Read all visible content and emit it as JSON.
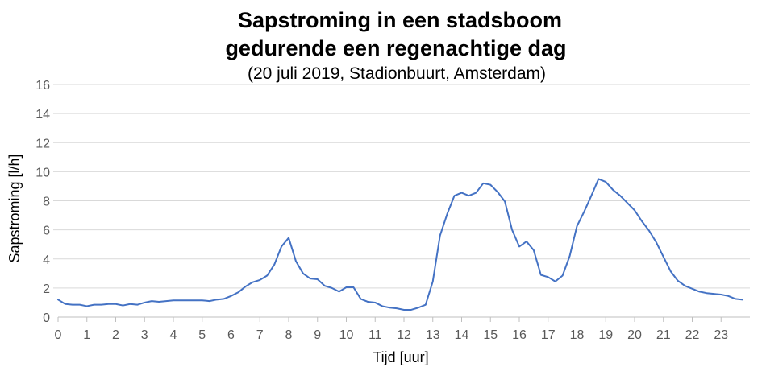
{
  "chart_data": {
    "type": "line",
    "title": [
      "Sapstroming in een stadsboom",
      "gedurende een regenachtige dag"
    ],
    "subtitle": "(20 juli 2019, Stadionbuurt, Amsterdam)",
    "xlabel": "Tijd [uur]",
    "ylabel": "Sapstroming [l/h]",
    "xlim": [
      0,
      24
    ],
    "ylim": [
      0,
      16
    ],
    "xticks": [
      0,
      1,
      2,
      3,
      4,
      5,
      6,
      7,
      8,
      9,
      10,
      11,
      12,
      13,
      14,
      15,
      16,
      17,
      18,
      19,
      20,
      21,
      22,
      23
    ],
    "yticks": [
      0,
      2,
      4,
      6,
      8,
      10,
      12,
      14,
      16
    ],
    "grid": "horizontal",
    "legend": "none",
    "colors": {
      "series": "#4472c4",
      "grid": "#d9d9d9",
      "axis": "#bfbfbf",
      "tick_text": "#595959"
    },
    "series": [
      {
        "x": [
          0,
          0.25,
          0.5,
          0.75,
          1,
          1.25,
          1.5,
          1.75,
          2,
          2.25,
          2.5,
          2.75,
          3,
          3.25,
          3.5,
          3.75,
          4,
          4.25,
          4.5,
          4.75,
          5,
          5.25,
          5.5,
          5.75,
          6,
          6.25,
          6.5,
          6.75,
          7,
          7.25,
          7.5,
          7.75,
          8,
          8.25,
          8.5,
          8.75,
          9,
          9.25,
          9.5,
          9.75,
          10,
          10.25,
          10.5,
          10.75,
          11,
          11.25,
          11.5,
          11.75,
          12,
          12.25,
          12.5,
          12.75,
          13,
          13.25,
          13.5,
          13.75,
          14,
          14.25,
          14.5,
          14.75,
          15,
          15.25,
          15.5,
          15.75,
          16,
          16.25,
          16.5,
          16.75,
          17,
          17.25,
          17.5,
          17.75,
          18,
          18.25,
          18.5,
          18.75,
          19,
          19.25,
          19.5,
          19.75,
          20,
          20.25,
          20.5,
          20.75,
          21,
          21.25,
          21.5,
          21.75,
          22,
          22.25,
          22.5,
          22.75,
          23,
          23.25,
          23.5,
          23.75
        ],
        "values": [
          1.2,
          0.9,
          0.85,
          0.85,
          0.75,
          0.85,
          0.85,
          0.9,
          0.9,
          0.8,
          0.9,
          0.85,
          1.0,
          1.1,
          1.05,
          1.1,
          1.15,
          1.15,
          1.15,
          1.15,
          1.15,
          1.1,
          1.2,
          1.25,
          1.45,
          1.7,
          2.1,
          2.4,
          2.55,
          2.85,
          3.6,
          4.85,
          5.45,
          3.85,
          3.0,
          2.65,
          2.6,
          2.15,
          2.0,
          1.75,
          2.05,
          2.05,
          1.25,
          1.05,
          1.0,
          0.75,
          0.65,
          0.6,
          0.5,
          0.5,
          0.65,
          0.85,
          2.45,
          5.6,
          7.1,
          8.35,
          8.55,
          8.35,
          8.55,
          9.2,
          9.1,
          8.6,
          7.95,
          6.0,
          4.85,
          5.2,
          4.6,
          2.9,
          2.75,
          2.45,
          2.85,
          4.2,
          6.25,
          7.25,
          8.35,
          9.5,
          9.3,
          8.75,
          8.35,
          7.85,
          7.35,
          6.6,
          5.95,
          5.15,
          4.15,
          3.15,
          2.5,
          2.15,
          1.95,
          1.75,
          1.65,
          1.6,
          1.55,
          1.45,
          1.25,
          1.2
        ]
      }
    ]
  }
}
